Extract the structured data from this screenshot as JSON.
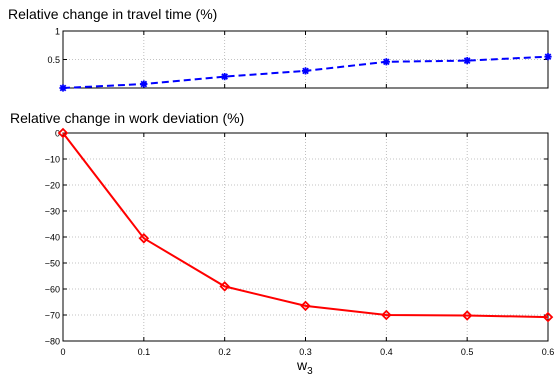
{
  "chart_data": [
    {
      "type": "line",
      "title": "Relative change in travel time (%)",
      "xlabel": "",
      "ylabel": "",
      "xlim": [
        0,
        0.6
      ],
      "ylim": [
        0,
        1
      ],
      "x_ticks": [
        0,
        0.1,
        0.2,
        0.3,
        0.4,
        0.5,
        0.6
      ],
      "y_ticks": [
        0.5,
        1
      ],
      "y_tick_labels": [
        "0.5",
        "1"
      ],
      "x_tick_labels_shown": false,
      "grid": true,
      "series": [
        {
          "x": [
            0,
            0.1,
            0.2,
            0.3,
            0.4,
            0.5,
            0.6
          ],
          "values": [
            0.0,
            0.07,
            0.2,
            0.3,
            0.46,
            0.48,
            0.55
          ],
          "color": "#0000ff",
          "line_style": "dashed",
          "marker": "star"
        }
      ]
    },
    {
      "type": "line",
      "title": "Relative change in work deviation (%)",
      "xlabel": "w",
      "xlabel_sub": "3",
      "ylabel": "",
      "xlim": [
        0,
        0.6
      ],
      "ylim": [
        -80,
        0
      ],
      "x_ticks": [
        0,
        0.1,
        0.2,
        0.3,
        0.4,
        0.5,
        0.6
      ],
      "x_tick_labels": [
        "0",
        "0.1",
        "0.2",
        "0.3",
        "0.4",
        "0.5",
        "0.6"
      ],
      "y_ticks": [
        0,
        -10,
        -20,
        -30,
        -40,
        -50,
        -60,
        -70,
        -80
      ],
      "y_tick_labels": [
        "0",
        "−10",
        "−20",
        "−30",
        "−40",
        "−50",
        "−60",
        "−70",
        "−80"
      ],
      "grid": true,
      "series": [
        {
          "x": [
            0,
            0.1,
            0.2,
            0.3,
            0.4,
            0.5,
            0.6
          ],
          "values": [
            0,
            -40.5,
            -59,
            -66.5,
            -70,
            -70.2,
            -70.8
          ],
          "color": "#ff0000",
          "line_style": "solid",
          "marker": "diamond"
        }
      ]
    }
  ]
}
